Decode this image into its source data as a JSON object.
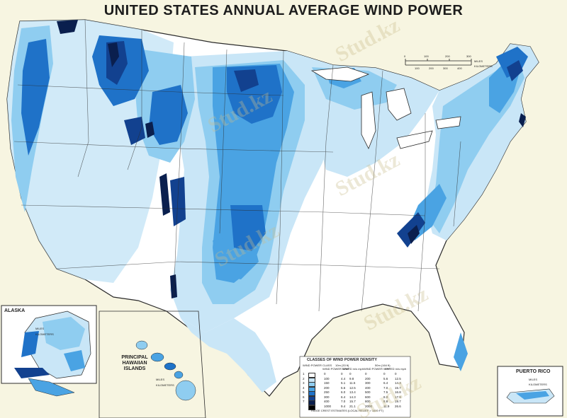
{
  "map": {
    "title": "UNITED STATES ANNUAL AVERAGE WIND POWER"
  },
  "insets": {
    "alaska": {
      "title": "ALASKA",
      "scale_units": "MILES",
      "scale_units2": "KILOMETERS"
    },
    "hawaii": {
      "title_line1": "PRINCIPAL",
      "title_line2": "HAWAIIAN",
      "title_line3": "ISLANDS",
      "scale_units": "MILES",
      "scale_units2": "KILOMETERS"
    },
    "puerto_rico": {
      "title": "PUERTO RICO",
      "scale_units": "MILES",
      "scale_units2": "KILOMETERS"
    }
  },
  "scale_bar": {
    "miles_label": "MILES",
    "km_label": "KILOMETERS",
    "miles_ticks": [
      "0",
      "100",
      "200",
      "300"
    ],
    "km_ticks": [
      "100",
      "200",
      "300",
      "400"
    ]
  },
  "legend": {
    "title": "CLASSES OF WIND POWER DENSITY",
    "col_class": "WIND POWER CLASS",
    "col_10m": "10m (33 ft)",
    "col_50m": "50m (164 ft)",
    "col_power": "WIND POWER W/m²",
    "col_speed": "SPEED m/s  mph",
    "rows": [
      {
        "cls": "1",
        "p10": "0",
        "s10": "0",
        "m10": "0",
        "p50": "0",
        "s50": "0",
        "m50": "0",
        "color": "#ffffff"
      },
      {
        "cls": "2",
        "p10": "100",
        "s10": "4.4",
        "m10": "9.8",
        "p50": "200",
        "s50": "5.6",
        "m50": "12.5",
        "color": "#c9e6f7"
      },
      {
        "cls": "3",
        "p10": "150",
        "s10": "5.1",
        "m10": "11.5",
        "p50": "300",
        "s50": "6.4",
        "m50": "14.3",
        "color": "#8fcdf0"
      },
      {
        "cls": "4",
        "p10": "200",
        "s10": "5.6",
        "m10": "12.5",
        "p50": "400",
        "s50": "7.0",
        "m50": "15.7",
        "color": "#4aa3e3"
      },
      {
        "cls": "5",
        "p10": "250",
        "s10": "6.0",
        "m10": "13.4",
        "p50": "500",
        "s50": "7.5",
        "m50": "16.8",
        "color": "#1f72c8"
      },
      {
        "cls": "6",
        "p10": "300",
        "s10": "6.4",
        "m10": "14.3",
        "p50": "600",
        "s50": "8.0",
        "m50": "17.9",
        "color": "#12418f"
      },
      {
        "cls": "7",
        "p10": "400",
        "s10": "7.0",
        "m10": "15.7",
        "p50": "800",
        "s50": "8.8",
        "m50": "19.7",
        "color": "#0a1f4e"
      },
      {
        "cls": "",
        "p10": "1000",
        "s10": "9.4",
        "m10": "21.1",
        "p50": "2000",
        "s50": "11.9",
        "m50": "26.6",
        "color": "#000000"
      }
    ],
    "footnote": "RIDGE CREST ESTIMATES (LOCAL RELIEF > 1000 FT)"
  },
  "watermark": "Stud.kz",
  "colors": {
    "background": "#f7f5e1",
    "class1": "#ffffff",
    "class2": "#c9e6f7",
    "class3": "#8fcdf0",
    "class4": "#4aa3e3",
    "class5": "#1f72c8",
    "class6": "#12418f",
    "class7": "#0a1f4e",
    "border": "#2b2b2b"
  }
}
